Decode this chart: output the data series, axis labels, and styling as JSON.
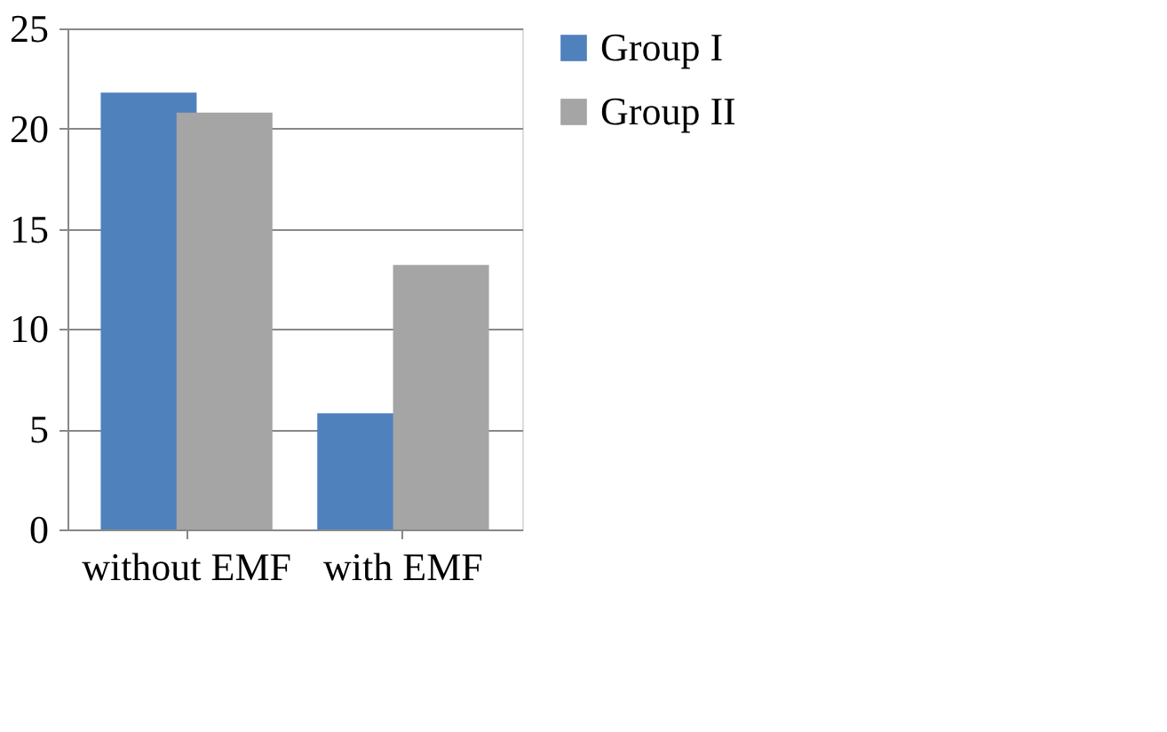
{
  "chart_data": {
    "type": "bar",
    "categories": [
      "without EMF",
      "with EMF"
    ],
    "series": [
      {
        "name": "Group I",
        "color": "#4f81bd",
        "values": [
          21.8,
          5.8
        ]
      },
      {
        "name": "Group II",
        "color": "#a5a5a5",
        "values": [
          20.8,
          13.2
        ]
      }
    ],
    "ylim": [
      0,
      25
    ],
    "yticks": [
      0,
      5,
      10,
      15,
      20,
      25
    ],
    "grid": "y",
    "legend": "right"
  }
}
